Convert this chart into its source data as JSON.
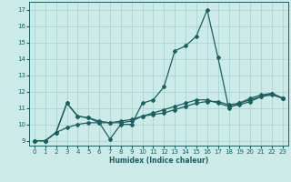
{
  "title": "",
  "xlabel": "Humidex (Indice chaleur)",
  "ylabel": "",
  "bg_color": "#cceae8",
  "grid_color": "#aad4d0",
  "line_color": "#1a6060",
  "xlim": [
    -0.5,
    23.5
  ],
  "ylim": [
    8.7,
    17.5
  ],
  "xticks": [
    0,
    1,
    2,
    3,
    4,
    5,
    6,
    7,
    8,
    9,
    10,
    11,
    12,
    13,
    14,
    15,
    16,
    17,
    18,
    19,
    20,
    21,
    22,
    23
  ],
  "yticks": [
    9,
    10,
    11,
    12,
    13,
    14,
    15,
    16,
    17
  ],
  "series": [
    {
      "x": [
        0,
        1,
        2,
        3,
        4,
        5,
        6,
        7,
        8,
        9,
        10,
        11,
        12,
        13,
        14,
        15,
        16,
        17,
        18,
        19,
        20,
        21,
        22,
        23
      ],
      "y": [
        9.0,
        9.0,
        9.5,
        11.3,
        10.5,
        10.4,
        10.1,
        9.1,
        10.0,
        10.0,
        11.3,
        11.5,
        12.3,
        14.5,
        14.8,
        15.4,
        17.0,
        14.1,
        11.0,
        11.3,
        11.6,
        11.8,
        11.9,
        11.6
      ],
      "marker": "D",
      "markersize": 2.0,
      "linewidth": 0.9
    },
    {
      "x": [
        0,
        1,
        2,
        3,
        4,
        5,
        6,
        7,
        8,
        9,
        10,
        11,
        12,
        13,
        14,
        15,
        16,
        17,
        18,
        19,
        20,
        21,
        22,
        23
      ],
      "y": [
        9.0,
        9.0,
        9.5,
        11.3,
        10.5,
        10.4,
        10.2,
        10.1,
        10.1,
        10.2,
        10.5,
        10.7,
        10.9,
        11.1,
        11.3,
        11.5,
        11.5,
        11.3,
        11.1,
        11.2,
        11.4,
        11.7,
        11.8,
        11.6
      ],
      "marker": "D",
      "markersize": 2.0,
      "linewidth": 0.9
    },
    {
      "x": [
        0,
        1,
        2,
        3,
        4,
        5,
        6,
        7,
        8,
        9,
        10,
        11,
        12,
        13,
        14,
        15,
        16,
        17,
        18,
        19,
        20,
        21,
        22,
        23
      ],
      "y": [
        9.0,
        9.0,
        9.5,
        9.8,
        10.0,
        10.1,
        10.1,
        10.1,
        10.2,
        10.3,
        10.5,
        10.6,
        10.7,
        10.9,
        11.1,
        11.3,
        11.4,
        11.4,
        11.2,
        11.3,
        11.5,
        11.7,
        11.9,
        11.6
      ],
      "marker": "D",
      "markersize": 2.0,
      "linewidth": 0.9
    }
  ]
}
